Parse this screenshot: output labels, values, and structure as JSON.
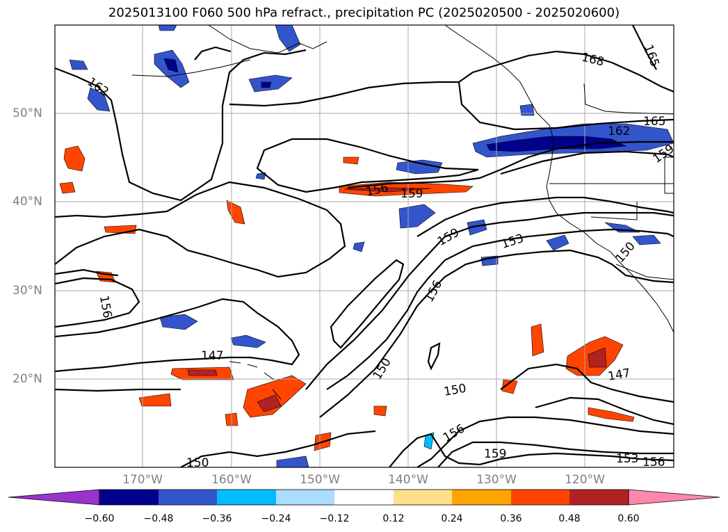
{
  "title": "2025013100 F060 500 hPa refract., precipitation PC (2025020500 - 2025020600)",
  "map": {
    "lon_labels": [
      "170°W",
      "160°W",
      "150°W",
      "140°W",
      "130°W",
      "120°W"
    ],
    "lat_labels": [
      "50°N",
      "40°N",
      "30°N",
      "20°N"
    ],
    "contour_labels": [
      "168",
      "165",
      "165",
      "162",
      "162",
      "159",
      "156",
      "159",
      "159",
      "153",
      "150",
      "156",
      "156",
      "147",
      "150",
      "150",
      "147",
      "156",
      "159",
      "153",
      "156"
    ]
  },
  "colorbar": {
    "ticks": [
      "−0.60",
      "−0.48",
      "−0.36",
      "−0.24",
      "−0.12",
      "0.12",
      "0.24",
      "0.36",
      "0.48",
      "0.60"
    ],
    "colors": [
      "#9933cc",
      "#00008b",
      "#3355cc",
      "#00bbff",
      "#aaddff",
      "#ffffff",
      "#ffe08a",
      "#ffa500",
      "#ff4500",
      "#b22222",
      "#ff88aa"
    ]
  }
}
